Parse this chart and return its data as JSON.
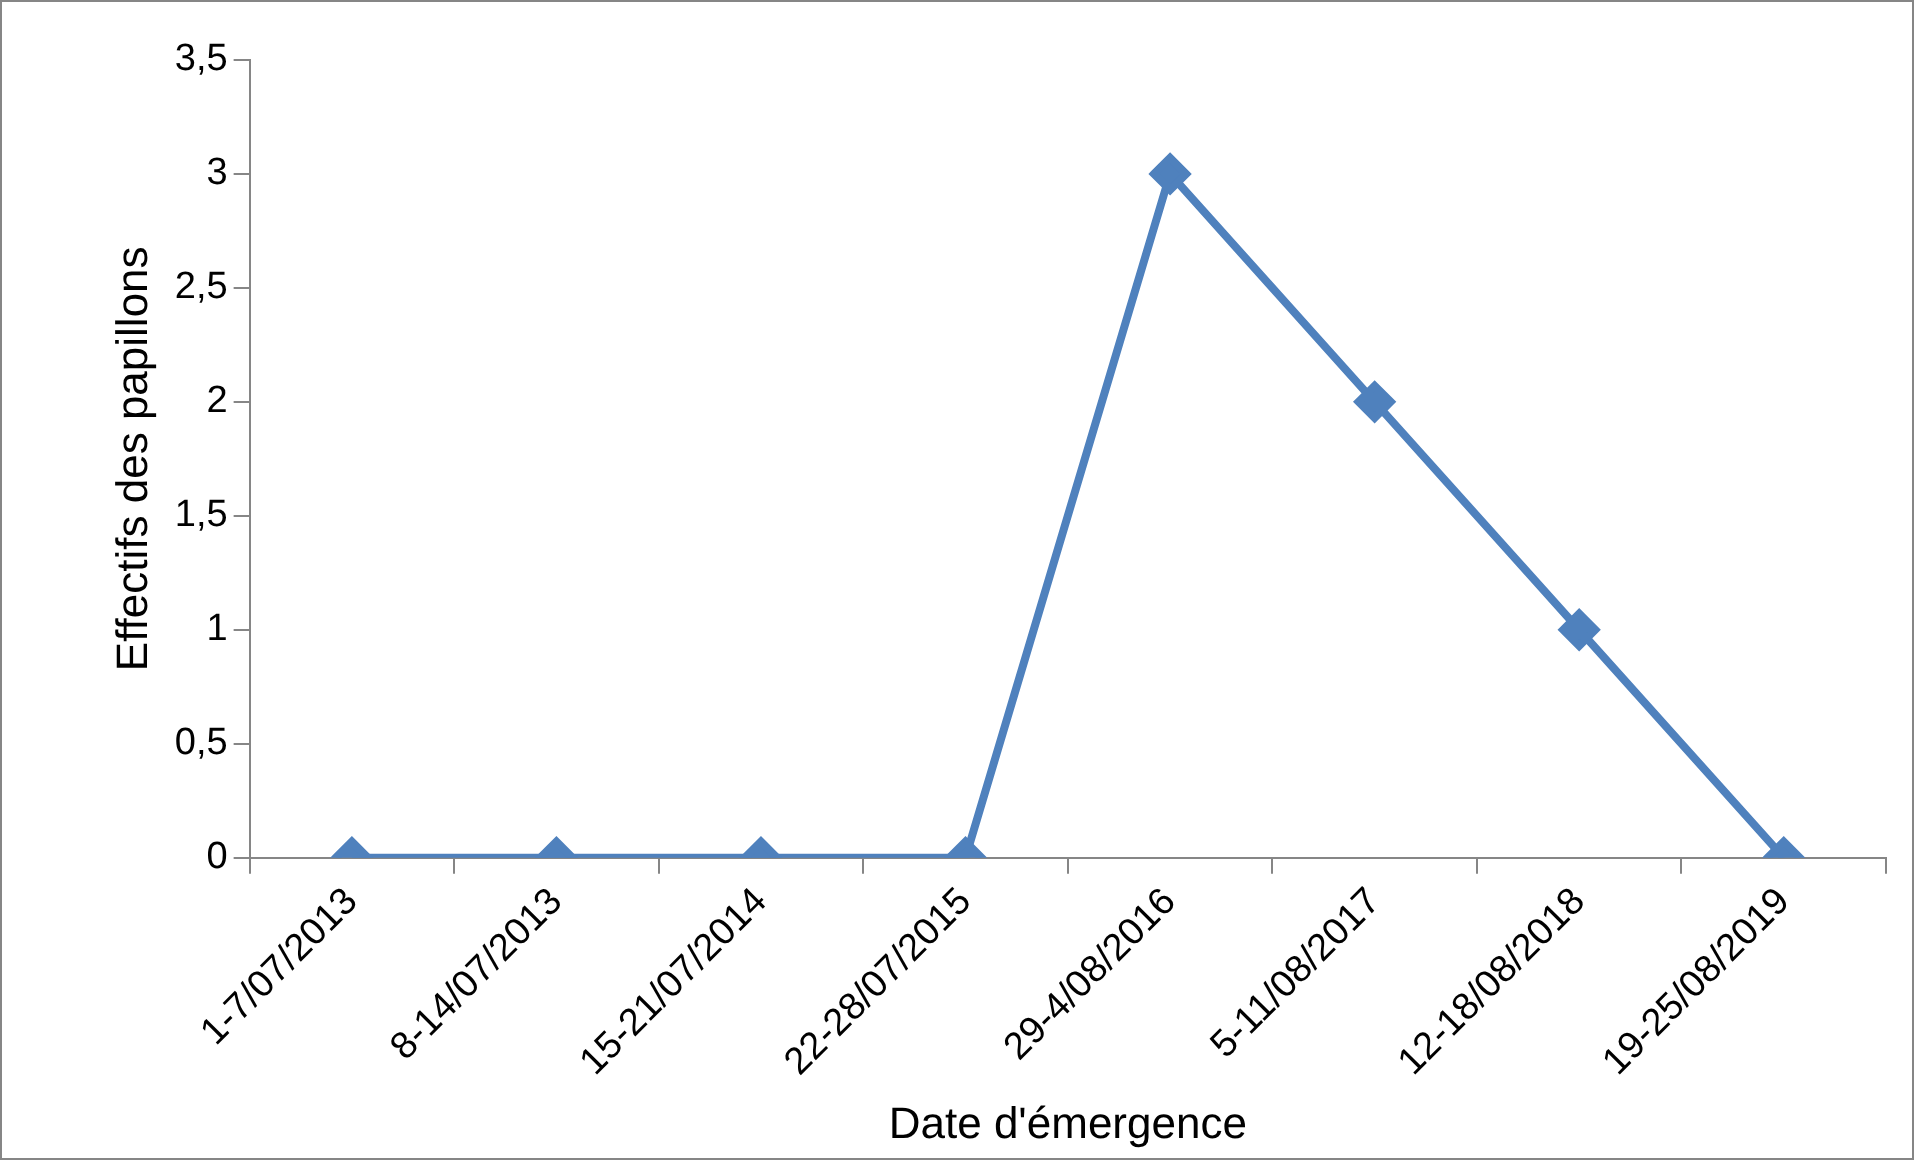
{
  "chart_data": {
    "type": "line",
    "xlabel": "Date d'émergence",
    "ylabel": "Effectifs des papillons",
    "categories": [
      "1-7/07/2013",
      "8-14/07/2013",
      "15-21/07/2014",
      "22-28/07/2015",
      "29-4/08/2016",
      "5-11/08/2017",
      "12-18/08/2018",
      "19-25/08/2019"
    ],
    "series": [
      {
        "color": "#4f81bd",
        "values": [
          0,
          0,
          0,
          0,
          3,
          2,
          1,
          0
        ]
      }
    ],
    "ylim": [
      0,
      3.5
    ],
    "yticks": [
      0,
      {
        "value": 0.5,
        "label": "0,5"
      },
      1,
      {
        "value": 1.5,
        "label": "1,5"
      },
      2,
      {
        "value": 2.5,
        "label": "2,5"
      },
      3,
      {
        "value": 3.5,
        "label": "3,5"
      }
    ],
    "grid": false,
    "legend": false,
    "marker": "diamond",
    "line_style": "solid"
  }
}
